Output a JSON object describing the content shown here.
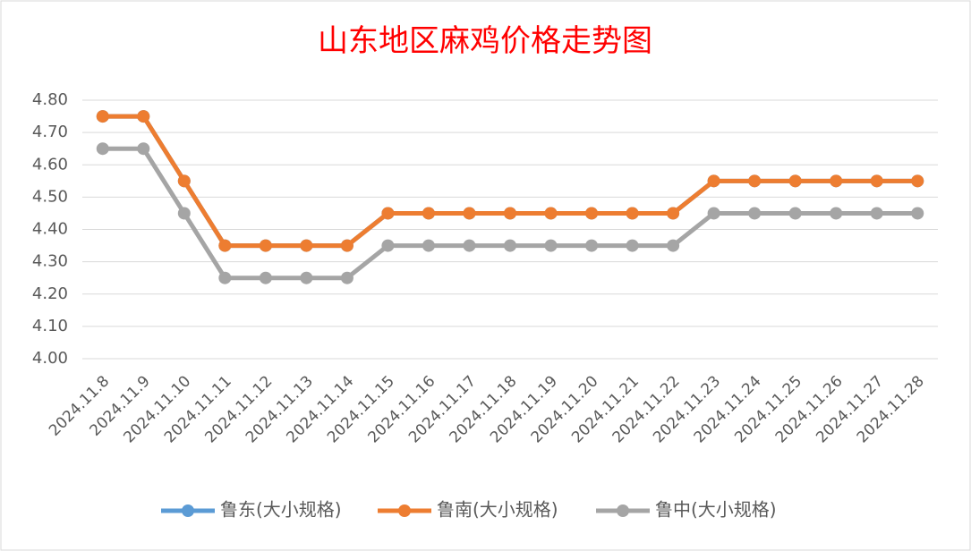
{
  "chart_data": {
    "type": "line",
    "title": "山东地区麻鸡价格走势图",
    "categories": [
      "2024.11.8",
      "2024.11.9",
      "2024.11.10",
      "2024.11.11",
      "2024.11.12",
      "2024.11.13",
      "2024.11.14",
      "2024.11.15",
      "2024.11.16",
      "2024.11.17",
      "2024.11.18",
      "2024.11.19",
      "2024.11.20",
      "2024.11.21",
      "2024.11.22",
      "2024.11.23",
      "2024.11.24",
      "2024.11.25",
      "2024.11.26",
      "2024.11.27",
      "2024.11.28"
    ],
    "series": [
      {
        "name": "鲁东(大小规格)",
        "color": "#5b9bd5",
        "values": [
          4.75,
          4.75,
          4.55,
          4.35,
          4.35,
          4.35,
          4.35,
          4.45,
          4.45,
          4.45,
          4.45,
          4.45,
          4.45,
          4.45,
          4.45,
          4.55,
          4.55,
          4.55,
          4.55,
          4.55,
          4.55
        ]
      },
      {
        "name": "鲁南(大小规格)",
        "color": "#ed7d31",
        "values": [
          4.75,
          4.75,
          4.55,
          4.35,
          4.35,
          4.35,
          4.35,
          4.45,
          4.45,
          4.45,
          4.45,
          4.45,
          4.45,
          4.45,
          4.45,
          4.55,
          4.55,
          4.55,
          4.55,
          4.55,
          4.55
        ]
      },
      {
        "name": "鲁中(大小规格)",
        "color": "#a5a5a5",
        "values": [
          4.65,
          4.65,
          4.45,
          4.25,
          4.25,
          4.25,
          4.25,
          4.35,
          4.35,
          4.35,
          4.35,
          4.35,
          4.35,
          4.35,
          4.35,
          4.45,
          4.45,
          4.45,
          4.45,
          4.45,
          4.45
        ]
      }
    ],
    "ylim": [
      4.0,
      4.8
    ],
    "yticks": [
      {
        "value": 4.0,
        "label": "4.00"
      },
      {
        "value": 4.1,
        "label": "4.10"
      },
      {
        "value": 4.2,
        "label": "4.20"
      },
      {
        "value": 4.3,
        "label": "4.30"
      },
      {
        "value": 4.4,
        "label": "4.40"
      },
      {
        "value": 4.5,
        "label": "4.50"
      },
      {
        "value": 4.6,
        "label": "4.60"
      },
      {
        "value": 4.7,
        "label": "4.70"
      },
      {
        "value": 4.8,
        "label": "4.80"
      }
    ],
    "grid": true,
    "legend": "bottom"
  }
}
